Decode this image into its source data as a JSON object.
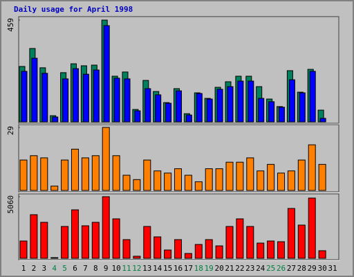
{
  "chart_data": {
    "type": "bar",
    "title": "Daily usage for April 1998",
    "categories": [
      "1",
      "2",
      "3",
      "4",
      "5",
      "6",
      "7",
      "8",
      "9",
      "10",
      "11",
      "12",
      "13",
      "14",
      "15",
      "16",
      "17",
      "18",
      "19",
      "20",
      "21",
      "22",
      "23",
      "24",
      "25",
      "26",
      "27",
      "28",
      "29",
      "30",
      "31"
    ],
    "category_colors": [
      "#000000",
      "#000000",
      "#000000",
      "#008040",
      "#008040",
      "#000000",
      "#000000",
      "#000000",
      "#000000",
      "#000000",
      "#008040",
      "#008040",
      "#000000",
      "#000000",
      "#000000",
      "#000000",
      "#000000",
      "#008040",
      "#008040",
      "#000000",
      "#000000",
      "#000000",
      "#000000",
      "#000000",
      "#008040",
      "#008040",
      "#000000",
      "#000000",
      "#000000",
      "#000000",
      "#000000"
    ],
    "panels": [
      {
        "ylim": [
          0,
          459
        ],
        "yticks": [
          459
        ],
        "series": [
          {
            "color": "#00805c",
            "values": [
              250,
              331,
              244,
              28,
              222,
              262,
              253,
              256,
              459,
              206,
              225,
              56,
              187,
              137,
              87,
              150,
              37,
              131,
              106,
              156,
              181,
              206,
              206,
              159,
              103,
              69,
              231,
              134,
              237,
              53,
              null
            ]
          },
          {
            "color": "#0000ff",
            "values": [
              228,
              287,
              219,
              22,
              194,
              240,
              215,
              234,
              434,
              197,
              194,
              50,
              150,
              122,
              84,
              140,
              31,
              128,
              103,
              147,
              159,
              184,
              184,
              106,
              91,
              66,
              190,
              131,
              228,
              16,
              null
            ]
          }
        ]
      },
      {
        "ylim": [
          0,
          29
        ],
        "yticks": [
          29
        ],
        "series": [
          {
            "color": "#ff8000",
            "values": [
              14,
              16,
              15,
              2,
              14,
              19,
              15,
              16,
              29,
              16,
              7,
              5,
              14,
              9,
              8,
              10,
              7,
              4,
              10,
              10,
              13,
              13,
              15,
              9,
              12,
              8,
              9,
              14,
              21,
              12,
              null
            ]
          }
        ]
      },
      {
        "ylim": [
          0,
          5060
        ],
        "yticks": [
          5060
        ],
        "series": [
          {
            "color": "#ff0000",
            "values": [
              1421,
              3582,
              2956,
              57,
              2615,
              3980,
              2672,
              2956,
              5060,
              3241,
              1535,
              171,
              2615,
              1762,
              682,
              1535,
              398,
              1137,
              1535,
              1023,
              2615,
              3241,
              2615,
              1251,
              1421,
              1364,
              4094,
              2729,
              4946,
              625,
              null
            ]
          }
        ]
      }
    ]
  }
}
